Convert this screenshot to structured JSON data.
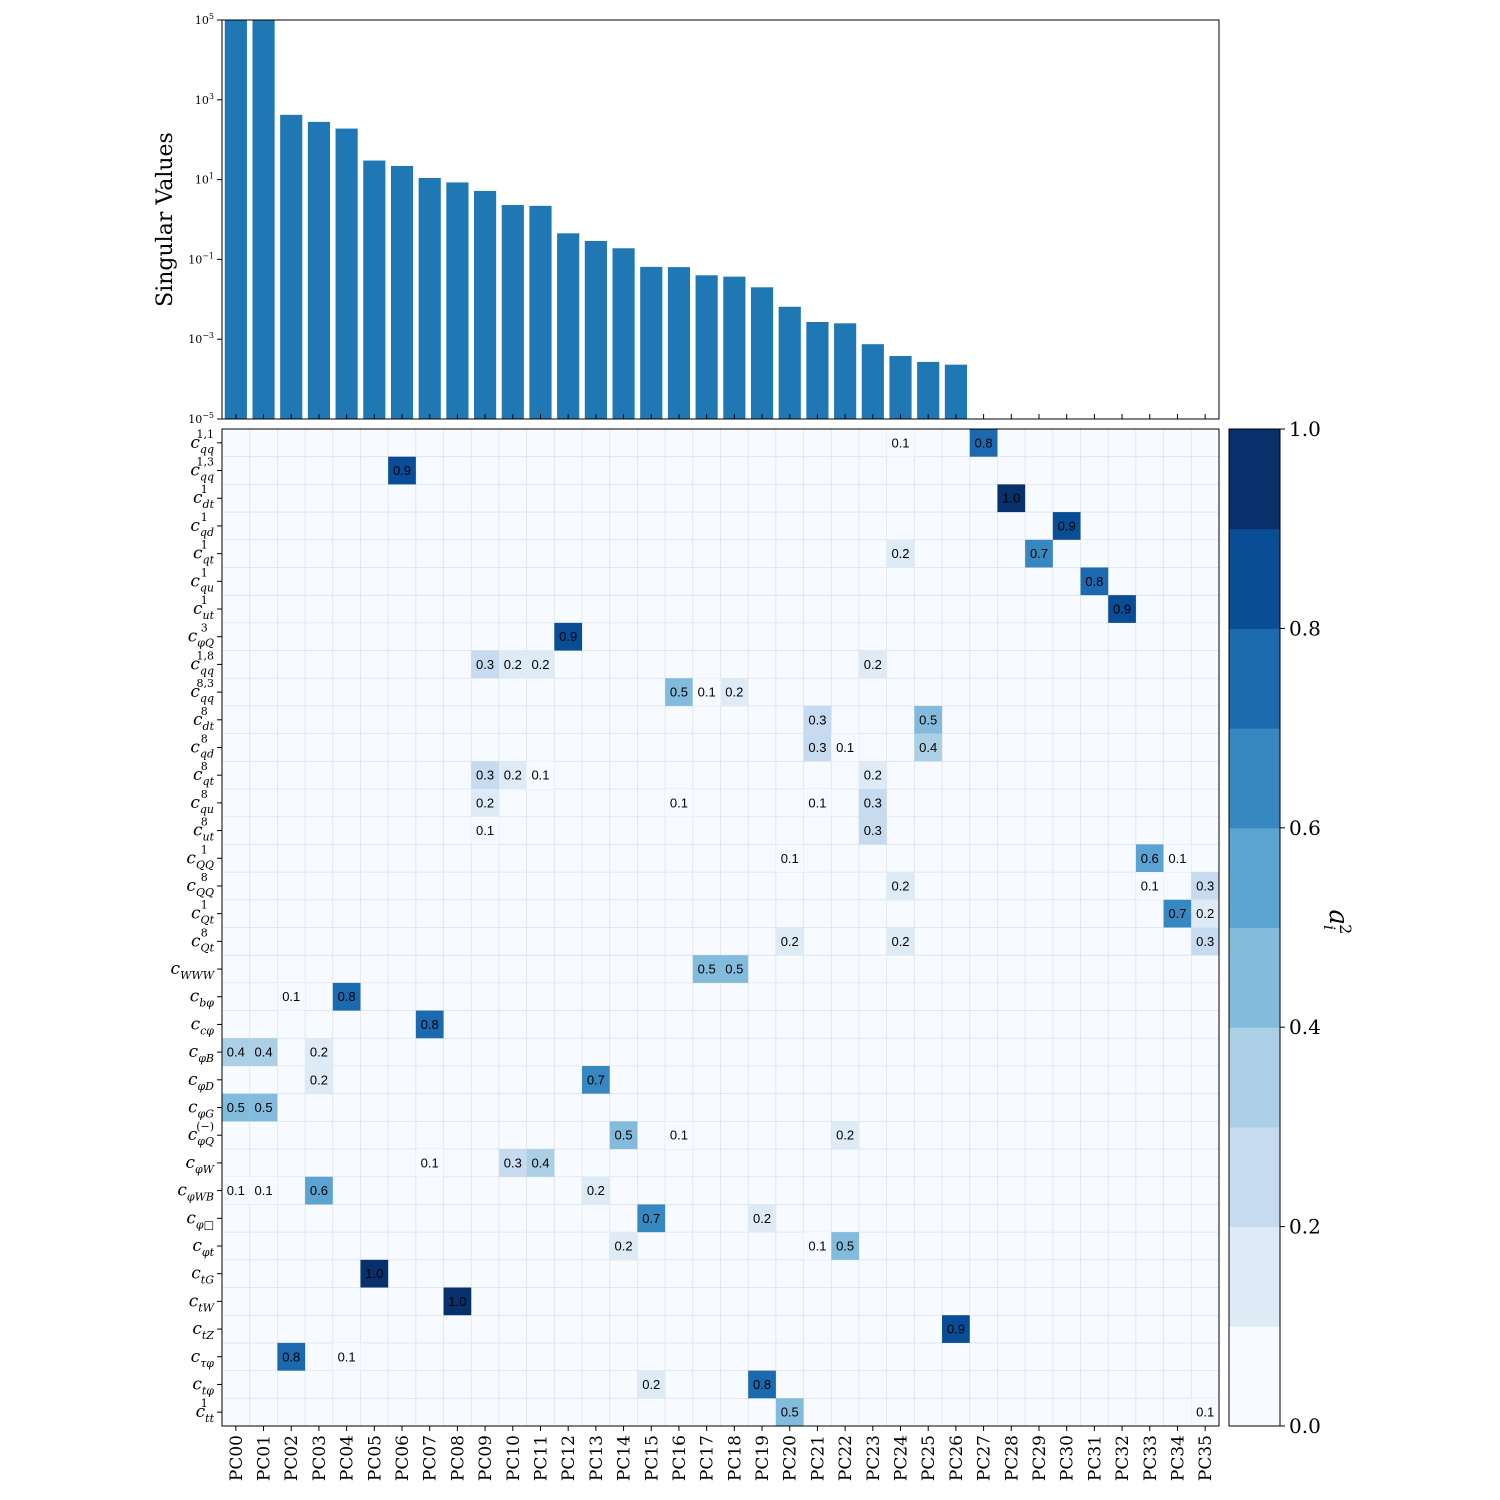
{
  "chart_data": [
    {
      "type": "bar",
      "ylabel": "Singular Values",
      "yscale": "log",
      "ylim": [
        1e-05,
        100000.0
      ],
      "yticks": [
        {
          "value": 1e-05,
          "base": "10",
          "exp": "−5"
        },
        {
          "value": 0.001,
          "base": "10",
          "exp": "−3"
        },
        {
          "value": 0.1,
          "base": "10",
          "exp": "−1"
        },
        {
          "value": 10.0,
          "base": "10",
          "exp": "1"
        },
        {
          "value": 1000.0,
          "base": "10",
          "exp": "3"
        },
        {
          "value": 100000.0,
          "base": "10",
          "exp": "5"
        }
      ],
      "color": "#1f77b4",
      "categories": [
        "PC00",
        "PC01",
        "PC02",
        "PC03",
        "PC04",
        "PC05",
        "PC06",
        "PC07",
        "PC08",
        "PC09",
        "PC10",
        "PC11",
        "PC12",
        "PC13",
        "PC14",
        "PC15",
        "PC16",
        "PC17",
        "PC18",
        "PC19",
        "PC20",
        "PC21",
        "PC22",
        "PC23",
        "PC24",
        "PC25",
        "PC26",
        "PC27",
        "PC28",
        "PC29",
        "PC30",
        "PC31",
        "PC32",
        "PC33",
        "PC34",
        "PC35"
      ],
      "values": [
        100000,
        100000,
        420,
        280,
        190,
        30,
        22,
        11,
        8.5,
        5.2,
        2.3,
        2.2,
        0.45,
        0.29,
        0.19,
        0.065,
        0.064,
        0.04,
        0.037,
        0.02,
        0.0065,
        0.0027,
        0.0025,
        0.00075,
        0.00038,
        0.00027,
        0.00023,
        null,
        null,
        null,
        null,
        null,
        null,
        null,
        null,
        null
      ]
    },
    {
      "type": "heatmap",
      "colorbar_label": "a",
      "colorbar_sub": "i",
      "colorbar_sup": "2",
      "vmin": 0.0,
      "vmax": 1.0,
      "colorbar_ticks": [
        "0.0",
        "0.2",
        "0.4",
        "0.6",
        "0.8",
        "1.0"
      ],
      "palette": [
        "#f7fbff",
        "#deebf7",
        "#c6dbef",
        "#abd0e6",
        "#82bbdb",
        "#5ba3d0",
        "#3787c0",
        "#1b69af",
        "#084d96",
        "#08306b"
      ],
      "x": [
        "PC00",
        "PC01",
        "PC02",
        "PC03",
        "PC04",
        "PC05",
        "PC06",
        "PC07",
        "PC08",
        "PC09",
        "PC10",
        "PC11",
        "PC12",
        "PC13",
        "PC14",
        "PC15",
        "PC16",
        "PC17",
        "PC18",
        "PC19",
        "PC20",
        "PC21",
        "PC22",
        "PC23",
        "PC24",
        "PC25",
        "PC26",
        "PC27",
        "PC28",
        "PC29",
        "PC30",
        "PC31",
        "PC32",
        "PC33",
        "PC34",
        "PC35"
      ],
      "y": [
        {
          "base": "c",
          "sub": "qq",
          "sup": "1,1"
        },
        {
          "base": "c",
          "sub": "qq",
          "sup": "1,3"
        },
        {
          "base": "c",
          "sub": "dt",
          "sup": "1"
        },
        {
          "base": "c",
          "sub": "qd",
          "sup": "1"
        },
        {
          "base": "c",
          "sub": "qt",
          "sup": "1"
        },
        {
          "base": "c",
          "sub": "qu",
          "sup": "1"
        },
        {
          "base": "c",
          "sub": "ut",
          "sup": "1"
        },
        {
          "base": "c",
          "sub": "φQ",
          "sup": "3"
        },
        {
          "base": "c",
          "sub": "qq",
          "sup": "1,8"
        },
        {
          "base": "c",
          "sub": "qq",
          "sup": "8,3"
        },
        {
          "base": "c",
          "sub": "dt",
          "sup": "8"
        },
        {
          "base": "c",
          "sub": "qd",
          "sup": "8"
        },
        {
          "base": "c",
          "sub": "qt",
          "sup": "8"
        },
        {
          "base": "c",
          "sub": "qu",
          "sup": "8"
        },
        {
          "base": "c",
          "sub": "ut",
          "sup": "8"
        },
        {
          "base": "c",
          "sub": "QQ",
          "sup": "1"
        },
        {
          "base": "c",
          "sub": "QQ",
          "sup": "8"
        },
        {
          "base": "c",
          "sub": "Qt",
          "sup": "1"
        },
        {
          "base": "c",
          "sub": "Qt",
          "sup": "8"
        },
        {
          "base": "c",
          "sub": "WWW",
          "sup": ""
        },
        {
          "base": "c",
          "sub": "bφ",
          "sup": ""
        },
        {
          "base": "c",
          "sub": "cφ",
          "sup": ""
        },
        {
          "base": "c",
          "sub": "φB",
          "sup": ""
        },
        {
          "base": "c",
          "sub": "φD",
          "sup": ""
        },
        {
          "base": "c",
          "sub": "φG",
          "sup": ""
        },
        {
          "base": "c",
          "sub": "φQ",
          "sup": "(−)"
        },
        {
          "base": "c",
          "sub": "φW",
          "sup": ""
        },
        {
          "base": "c",
          "sub": "φWB",
          "sup": ""
        },
        {
          "base": "c",
          "sub": "φ□",
          "sup": ""
        },
        {
          "base": "c",
          "sub": "φt",
          "sup": ""
        },
        {
          "base": "c",
          "sub": "tG",
          "sup": ""
        },
        {
          "base": "c",
          "sub": "tW",
          "sup": ""
        },
        {
          "base": "c",
          "sub": "tZ",
          "sup": ""
        },
        {
          "base": "c",
          "sub": "τφ",
          "sup": ""
        },
        {
          "base": "c",
          "sub": "tφ",
          "sup": ""
        },
        {
          "base": "c",
          "sub": "tt",
          "sup": "1"
        }
      ],
      "cells": [
        {
          "row": 0,
          "col": 24,
          "value": 0.1
        },
        {
          "row": 0,
          "col": 27,
          "value": 0.8
        },
        {
          "row": 1,
          "col": 6,
          "value": 0.9
        },
        {
          "row": 2,
          "col": 28,
          "value": 1.0
        },
        {
          "row": 3,
          "col": 30,
          "value": 0.9
        },
        {
          "row": 4,
          "col": 24,
          "value": 0.2
        },
        {
          "row": 4,
          "col": 29,
          "value": 0.7
        },
        {
          "row": 5,
          "col": 31,
          "value": 0.8
        },
        {
          "row": 6,
          "col": 32,
          "value": 0.9
        },
        {
          "row": 7,
          "col": 12,
          "value": 0.9
        },
        {
          "row": 8,
          "col": 9,
          "value": 0.3
        },
        {
          "row": 8,
          "col": 10,
          "value": 0.2
        },
        {
          "row": 8,
          "col": 11,
          "value": 0.2
        },
        {
          "row": 8,
          "col": 23,
          "value": 0.2
        },
        {
          "row": 9,
          "col": 16,
          "value": 0.5
        },
        {
          "row": 9,
          "col": 17,
          "value": 0.1
        },
        {
          "row": 9,
          "col": 18,
          "value": 0.2
        },
        {
          "row": 10,
          "col": 21,
          "value": 0.3
        },
        {
          "row": 10,
          "col": 25,
          "value": 0.5
        },
        {
          "row": 11,
          "col": 21,
          "value": 0.3
        },
        {
          "row": 11,
          "col": 22,
          "value": 0.1
        },
        {
          "row": 11,
          "col": 25,
          "value": 0.4
        },
        {
          "row": 12,
          "col": 9,
          "value": 0.3
        },
        {
          "row": 12,
          "col": 10,
          "value": 0.2
        },
        {
          "row": 12,
          "col": 11,
          "value": 0.1
        },
        {
          "row": 12,
          "col": 23,
          "value": 0.2
        },
        {
          "row": 13,
          "col": 9,
          "value": 0.2
        },
        {
          "row": 13,
          "col": 16,
          "value": 0.1
        },
        {
          "row": 13,
          "col": 21,
          "value": 0.1
        },
        {
          "row": 13,
          "col": 23,
          "value": 0.3
        },
        {
          "row": 14,
          "col": 9,
          "value": 0.1
        },
        {
          "row": 14,
          "col": 23,
          "value": 0.3
        },
        {
          "row": 15,
          "col": 20,
          "value": 0.1
        },
        {
          "row": 15,
          "col": 33,
          "value": 0.6
        },
        {
          "row": 15,
          "col": 34,
          "value": 0.1
        },
        {
          "row": 16,
          "col": 24,
          "value": 0.2
        },
        {
          "row": 16,
          "col": 33,
          "value": 0.1
        },
        {
          "row": 16,
          "col": 35,
          "value": 0.3
        },
        {
          "row": 17,
          "col": 34,
          "value": 0.7
        },
        {
          "row": 17,
          "col": 35,
          "value": 0.2
        },
        {
          "row": 18,
          "col": 20,
          "value": 0.2
        },
        {
          "row": 18,
          "col": 24,
          "value": 0.2
        },
        {
          "row": 18,
          "col": 35,
          "value": 0.3
        },
        {
          "row": 19,
          "col": 17,
          "value": 0.5
        },
        {
          "row": 19,
          "col": 18,
          "value": 0.5
        },
        {
          "row": 20,
          "col": 2,
          "value": 0.1
        },
        {
          "row": 20,
          "col": 4,
          "value": 0.8
        },
        {
          "row": 21,
          "col": 7,
          "value": 0.8
        },
        {
          "row": 22,
          "col": 0,
          "value": 0.4
        },
        {
          "row": 22,
          "col": 1,
          "value": 0.4
        },
        {
          "row": 22,
          "col": 3,
          "value": 0.2
        },
        {
          "row": 23,
          "col": 3,
          "value": 0.2
        },
        {
          "row": 23,
          "col": 13,
          "value": 0.7
        },
        {
          "row": 24,
          "col": 0,
          "value": 0.5
        },
        {
          "row": 24,
          "col": 1,
          "value": 0.5
        },
        {
          "row": 25,
          "col": 14,
          "value": 0.5
        },
        {
          "row": 25,
          "col": 16,
          "value": 0.1
        },
        {
          "row": 25,
          "col": 22,
          "value": 0.2
        },
        {
          "row": 26,
          "col": 7,
          "value": 0.1
        },
        {
          "row": 26,
          "col": 10,
          "value": 0.3
        },
        {
          "row": 26,
          "col": 11,
          "value": 0.4
        },
        {
          "row": 27,
          "col": 0,
          "value": 0.1
        },
        {
          "row": 27,
          "col": 1,
          "value": 0.1
        },
        {
          "row": 27,
          "col": 3,
          "value": 0.6
        },
        {
          "row": 27,
          "col": 13,
          "value": 0.2
        },
        {
          "row": 28,
          "col": 15,
          "value": 0.7
        },
        {
          "row": 28,
          "col": 19,
          "value": 0.2
        },
        {
          "row": 29,
          "col": 14,
          "value": 0.2
        },
        {
          "row": 29,
          "col": 21,
          "value": 0.1
        },
        {
          "row": 29,
          "col": 22,
          "value": 0.5
        },
        {
          "row": 30,
          "col": 5,
          "value": 1.0
        },
        {
          "row": 31,
          "col": 8,
          "value": 1.0
        },
        {
          "row": 32,
          "col": 26,
          "value": 0.9
        },
        {
          "row": 33,
          "col": 2,
          "value": 0.8
        },
        {
          "row": 33,
          "col": 4,
          "value": 0.1
        },
        {
          "row": 34,
          "col": 15,
          "value": 0.2
        },
        {
          "row": 34,
          "col": 19,
          "value": 0.8
        },
        {
          "row": 35,
          "col": 20,
          "value": 0.5
        },
        {
          "row": 35,
          "col": 35,
          "value": 0.1
        }
      ]
    }
  ]
}
